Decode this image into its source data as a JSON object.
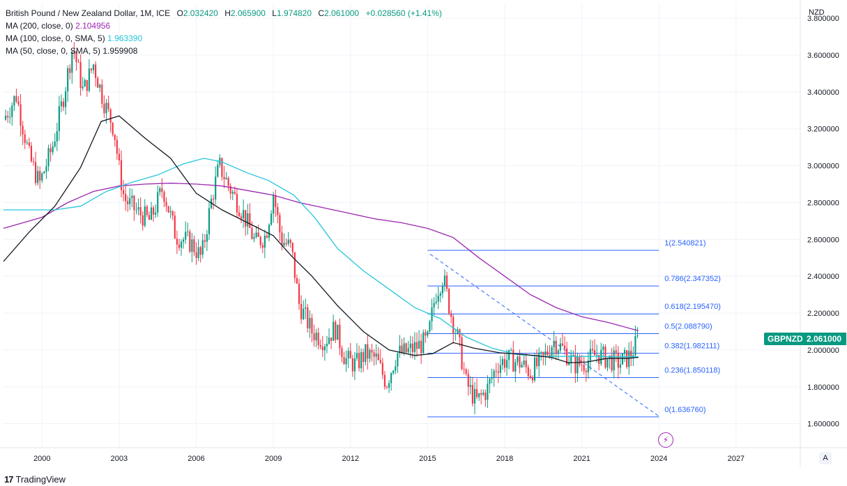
{
  "legend": {
    "title": "British Pound / New Zealand Dollar, 1M, ICE",
    "ohlc": [
      {
        "k": "O",
        "v": "2.032420"
      },
      {
        "k": "H",
        "v": "2.065900"
      },
      {
        "k": "L",
        "v": "1.974820"
      },
      {
        "k": "C",
        "v": "2.061000"
      }
    ],
    "change": "+0.028560 (+1.41%)",
    "ma200_label": "MA (200, close, 0)",
    "ma200_value": "2.104956",
    "ma100_label": "MA (100, close, 0, SMA, 5)",
    "ma100_value": "1.963390",
    "ma50_label": "MA (50, close, 0, SMA, 5)",
    "ma50_value": "1.959908"
  },
  "currency": "NZD",
  "symbol_tag": "GBPNZD",
  "price_tag": "2.061000",
  "auto_button": "A",
  "brand": "TradingView",
  "colors": {
    "up": "#089981",
    "down": "#f23645",
    "ma200": "#9c27b0",
    "ma100": "#26c6da",
    "ma50": "#131722",
    "fib": "#2962ff"
  },
  "chart_data": {
    "type": "candlestick",
    "y_axis": {
      "ticks": [
        "3.800000",
        "3.600000",
        "3.400000",
        "3.200000",
        "3.000000",
        "2.800000",
        "2.600000",
        "2.400000",
        "2.200000",
        "2.000000",
        "1.800000",
        "1.600000"
      ],
      "range": [
        1.47,
        3.88
      ]
    },
    "x_axis": {
      "ticks": [
        "2000",
        "2003",
        "2006",
        "2009",
        "2012",
        "2015",
        "2018",
        "2021",
        "2024",
        "2027"
      ],
      "range": [
        1998.5,
        2029.5
      ]
    },
    "fibonacci": {
      "levels": [
        {
          "ratio": "1",
          "label": "1(2.540821)",
          "value": 2.540821
        },
        {
          "ratio": "0.786",
          "label": "0.786(2.347352)",
          "value": 2.347352
        },
        {
          "ratio": "0.618",
          "label": "0.618(2.195470)",
          "value": 2.19547
        },
        {
          "ratio": "0.5",
          "label": "0.5(2.088790)",
          "value": 2.08879
        },
        {
          "ratio": "0.382",
          "label": "0.382(1.982111)",
          "value": 1.982111
        },
        {
          "ratio": "0.236",
          "label": "0.236(1.850118)",
          "value": 1.850118
        },
        {
          "ratio": "0",
          "label": "0(1.636760)",
          "value": 1.63676
        }
      ],
      "x_start": 2015.0,
      "x_end": 2024.0
    },
    "trend_line": {
      "x1": 2015.1,
      "y1": 2.52,
      "x2": 2024.0,
      "y2": 1.64
    },
    "close_series": [
      [
        1998.5,
        3.25
      ],
      [
        1999.0,
        3.38
      ],
      [
        1999.5,
        3.05
      ],
      [
        1999.9,
        2.9
      ],
      [
        2000.4,
        3.1
      ],
      [
        2000.8,
        3.35
      ],
      [
        2001.2,
        3.65
      ],
      [
        2001.6,
        3.4
      ],
      [
        2002.0,
        3.55
      ],
      [
        2002.4,
        3.35
      ],
      [
        2002.8,
        3.2
      ],
      [
        2003.0,
        2.98
      ],
      [
        2003.2,
        2.82
      ],
      [
        2003.7,
        2.75
      ],
      [
        2004.2,
        2.7
      ],
      [
        2004.7,
        2.88
      ],
      [
        2005.2,
        2.62
      ],
      [
        2005.8,
        2.58
      ],
      [
        2006.2,
        2.5
      ],
      [
        2006.6,
        2.82
      ],
      [
        2006.9,
        3.0
      ],
      [
        2007.3,
        2.88
      ],
      [
        2007.8,
        2.75
      ],
      [
        2008.3,
        2.58
      ],
      [
        2008.7,
        2.62
      ],
      [
        2009.0,
        2.85
      ],
      [
        2009.3,
        2.6
      ],
      [
        2009.7,
        2.55
      ],
      [
        2010.0,
        2.25
      ],
      [
        2010.5,
        2.1
      ],
      [
        2011.0,
        2.05
      ],
      [
        2011.4,
        2.12
      ],
      [
        2011.8,
        1.95
      ],
      [
        2012.2,
        1.92
      ],
      [
        2012.6,
        1.98
      ],
      [
        2013.0,
        1.95
      ],
      [
        2013.4,
        1.82
      ],
      [
        2013.8,
        1.98
      ],
      [
        2014.2,
        1.99
      ],
      [
        2014.6,
        2.02
      ],
      [
        2015.0,
        2.05
      ],
      [
        2015.3,
        2.3
      ],
      [
        2015.6,
        2.4
      ],
      [
        2015.9,
        2.2
      ],
      [
        2016.2,
        2.05
      ],
      [
        2016.5,
        1.82
      ],
      [
        2016.9,
        1.72
      ],
      [
        2017.3,
        1.78
      ],
      [
        2017.7,
        1.92
      ],
      [
        2018.1,
        1.95
      ],
      [
        2018.6,
        1.93
      ],
      [
        2019.0,
        1.88
      ],
      [
        2019.5,
        1.95
      ],
      [
        2019.9,
        2.05
      ],
      [
        2020.3,
        2.0
      ],
      [
        2020.7,
        1.92
      ],
      [
        2021.1,
        1.93
      ],
      [
        2021.6,
        1.98
      ],
      [
        2022.0,
        1.95
      ],
      [
        2022.5,
        1.93
      ],
      [
        2022.9,
        1.97
      ],
      [
        2023.2,
        2.06
      ]
    ],
    "ma200_series": [
      [
        1998.5,
        2.66
      ],
      [
        2000.0,
        2.72
      ],
      [
        2001.0,
        2.8
      ],
      [
        2002.0,
        2.86
      ],
      [
        2003.0,
        2.89
      ],
      [
        2004.0,
        2.9
      ],
      [
        2005.0,
        2.905
      ],
      [
        2006.0,
        2.9
      ],
      [
        2007.0,
        2.89
      ],
      [
        2008.0,
        2.865
      ],
      [
        2009.0,
        2.84
      ],
      [
        2010.0,
        2.8
      ],
      [
        2011.0,
        2.77
      ],
      [
        2012.0,
        2.74
      ],
      [
        2013.0,
        2.71
      ],
      [
        2014.0,
        2.69
      ],
      [
        2015.0,
        2.66
      ],
      [
        2016.0,
        2.61
      ],
      [
        2017.0,
        2.5
      ],
      [
        2018.0,
        2.4
      ],
      [
        2019.0,
        2.3
      ],
      [
        2020.0,
        2.23
      ],
      [
        2021.0,
        2.18
      ],
      [
        2022.0,
        2.15
      ],
      [
        2023.2,
        2.105
      ]
    ],
    "ma100_series": [
      [
        1998.5,
        2.76
      ],
      [
        1999.5,
        2.76
      ],
      [
        2000.5,
        2.76
      ],
      [
        2001.5,
        2.78
      ],
      [
        2002.5,
        2.86
      ],
      [
        2003.5,
        2.91
      ],
      [
        2004.5,
        2.95
      ],
      [
        2005.5,
        3.01
      ],
      [
        2006.3,
        3.04
      ],
      [
        2007.0,
        3.02
      ],
      [
        2008.0,
        2.96
      ],
      [
        2008.8,
        2.92
      ],
      [
        2009.8,
        2.84
      ],
      [
        2010.6,
        2.72
      ],
      [
        2011.5,
        2.55
      ],
      [
        2012.5,
        2.43
      ],
      [
        2013.5,
        2.33
      ],
      [
        2014.5,
        2.23
      ],
      [
        2015.5,
        2.17
      ],
      [
        2016.5,
        2.07
      ],
      [
        2017.5,
        2.01
      ],
      [
        2018.5,
        1.975
      ],
      [
        2019.5,
        1.965
      ],
      [
        2020.5,
        1.965
      ],
      [
        2021.5,
        1.965
      ],
      [
        2022.5,
        1.963
      ],
      [
        2023.2,
        1.963
      ]
    ],
    "ma50_series": [
      [
        1998.5,
        2.48
      ],
      [
        1999.5,
        2.64
      ],
      [
        2000.5,
        2.78
      ],
      [
        2001.5,
        2.99
      ],
      [
        2002.3,
        3.24
      ],
      [
        2003.0,
        3.27
      ],
      [
        2004.0,
        3.15
      ],
      [
        2005.0,
        3.04
      ],
      [
        2006.0,
        2.85
      ],
      [
        2007.0,
        2.76
      ],
      [
        2008.0,
        2.69
      ],
      [
        2009.0,
        2.62
      ],
      [
        2009.7,
        2.51
      ],
      [
        2010.5,
        2.4
      ],
      [
        2011.5,
        2.24
      ],
      [
        2012.5,
        2.1
      ],
      [
        2013.5,
        2.0
      ],
      [
        2014.5,
        1.97
      ],
      [
        2015.2,
        1.98
      ],
      [
        2016.0,
        2.04
      ],
      [
        2016.8,
        2.01
      ],
      [
        2017.8,
        1.985
      ],
      [
        2018.8,
        1.975
      ],
      [
        2019.8,
        1.96
      ],
      [
        2020.5,
        1.93
      ],
      [
        2021.2,
        1.935
      ],
      [
        2022.0,
        1.955
      ],
      [
        2022.8,
        1.955
      ],
      [
        2023.2,
        1.96
      ]
    ]
  }
}
